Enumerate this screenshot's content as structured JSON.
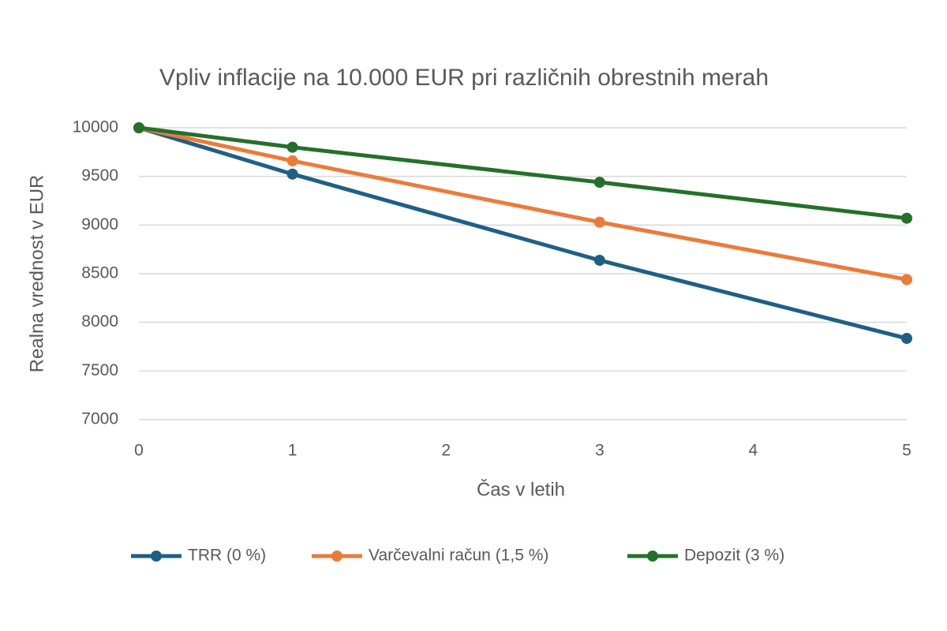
{
  "chart_data": {
    "type": "line",
    "title": "Vpliv inflacije na 10.000 EUR pri različnih obrestnih merah",
    "x_label": "Čas v letih",
    "y_label": "Realna vrednost v EUR",
    "x": [
      0,
      1,
      3,
      5
    ],
    "series": [
      {
        "name": "TRR (0 %)",
        "color": "#1f5f86",
        "values": [
          10000,
          9524,
          8638,
          7835
        ]
      },
      {
        "name": "Varčevalni račun (1,5 %)",
        "color": "#ec7b3a",
        "values": [
          10000,
          9660,
          9030,
          8440
        ]
      },
      {
        "name": "Depozit (3 %)",
        "color": "#24702b",
        "values": [
          10000,
          9800,
          9440,
          9070
        ]
      }
    ],
    "xlim": [
      0,
      5
    ],
    "xticks": [
      0,
      1,
      2,
      3,
      4,
      5
    ],
    "ylim": [
      7000,
      10000
    ],
    "yticks": [
      7000,
      7500,
      8000,
      8500,
      9000,
      9500,
      10000
    ],
    "grid": true,
    "legend": "bottom"
  }
}
